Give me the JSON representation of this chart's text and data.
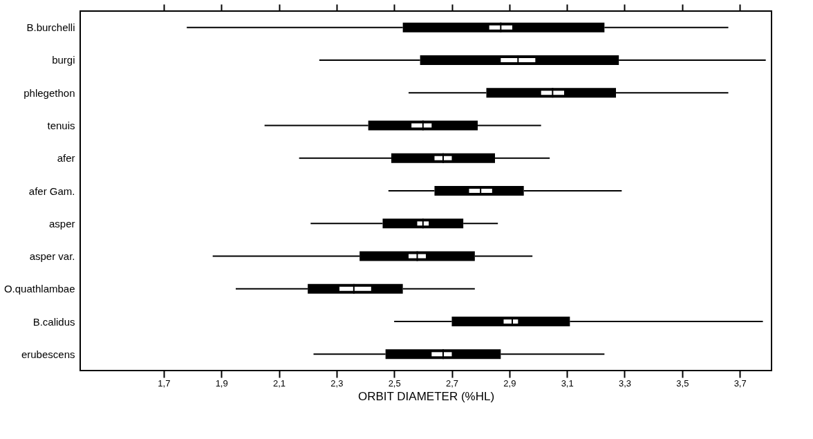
{
  "chart_data": {
    "type": "box",
    "orientation": "horizontal",
    "xlabel": "ORBIT DIAMETER (%HL)",
    "categories": [
      "B.burchelli",
      "burgi",
      "phlegethon",
      "tenuis",
      "afer",
      "afer Gam.",
      "asper",
      "asper var.",
      "O.quathlambae",
      "B.calidus",
      "erubescens"
    ],
    "xlim": [
      1.41,
      3.81
    ],
    "xticks": [
      {
        "value": 1.7,
        "label": "1,7"
      },
      {
        "value": 1.9,
        "label": "1,9"
      },
      {
        "value": 2.1,
        "label": "2,1"
      },
      {
        "value": 2.3,
        "label": "2,3"
      },
      {
        "value": 2.5,
        "label": "2,5"
      },
      {
        "value": 2.7,
        "label": "2,7"
      },
      {
        "value": 2.9,
        "label": "2,9"
      },
      {
        "value": 3.1,
        "label": "3,1"
      },
      {
        "value": 3.3,
        "label": "3,3"
      },
      {
        "value": 3.5,
        "label": "3,5"
      },
      {
        "value": 3.7,
        "label": "3,7"
      }
    ],
    "grid": false,
    "series": [
      {
        "type": "box",
        "color": "#000000",
        "boxes": [
          {
            "low": 1.78,
            "q1": 2.53,
            "median": 2.87,
            "q3": 3.23,
            "high": 3.66
          },
          {
            "low": 2.24,
            "q1": 2.59,
            "median": 2.93,
            "q3": 3.28,
            "high": 3.79
          },
          {
            "low": 2.55,
            "q1": 2.82,
            "median": 3.05,
            "q3": 3.27,
            "high": 3.66
          },
          {
            "low": 2.05,
            "q1": 2.41,
            "median": 2.6,
            "q3": 2.79,
            "high": 3.01
          },
          {
            "low": 2.17,
            "q1": 2.49,
            "median": 2.67,
            "q3": 2.85,
            "high": 3.04
          },
          {
            "low": 2.48,
            "q1": 2.64,
            "median": 2.8,
            "q3": 2.95,
            "high": 3.29
          },
          {
            "low": 2.21,
            "q1": 2.46,
            "median": 2.6,
            "q3": 2.74,
            "high": 2.86
          },
          {
            "low": 1.87,
            "q1": 2.38,
            "median": 2.58,
            "q3": 2.78,
            "high": 2.98
          },
          {
            "low": 1.95,
            "q1": 2.2,
            "median": 2.36,
            "q3": 2.53,
            "high": 2.78
          },
          {
            "low": 2.5,
            "q1": 2.7,
            "median": 2.91,
            "q3": 3.11,
            "high": 3.78
          },
          {
            "low": 2.22,
            "q1": 2.47,
            "median": 2.67,
            "q3": 2.87,
            "high": 3.23
          }
        ]
      },
      {
        "type": "bar",
        "color": "#ffffff",
        "base": [
          2.83,
          2.87,
          3.01,
          2.56,
          2.64,
          2.76,
          2.58,
          2.55,
          2.31,
          2.88,
          2.63
        ],
        "values": [
          0.08,
          0.12,
          0.08,
          0.07,
          0.06,
          0.08,
          0.04,
          0.06,
          0.11,
          0.05,
          0.07
        ]
      }
    ]
  }
}
